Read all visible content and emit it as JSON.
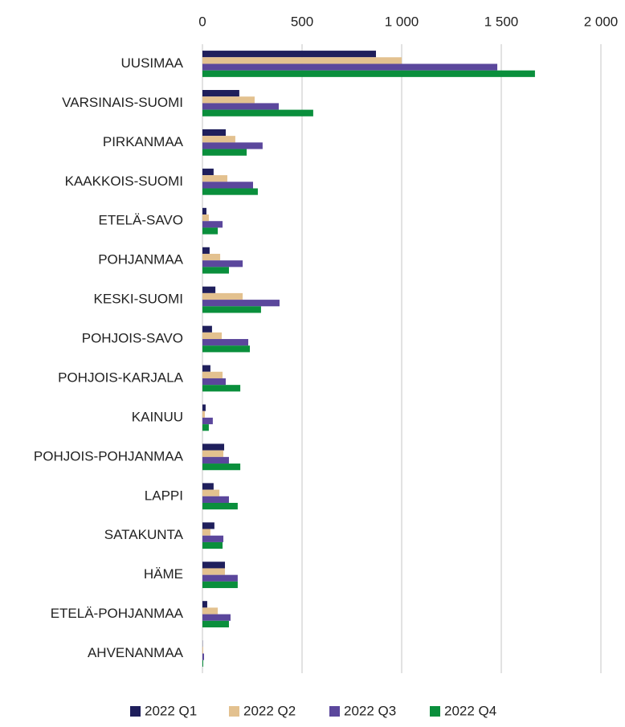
{
  "chart_data": {
    "type": "hbar",
    "categories": [
      "UUSIMAA",
      "VARSINAIS-SUOMI",
      "PIRKANMAA",
      "KAAKKOIS-SUOMI",
      "ETELÄ-SAVO",
      "POHJANMAA",
      "KESKI-SUOMI",
      "POHJOIS-SAVO",
      "POHJOIS-KARJALA",
      "KAINUU",
      "POHJOIS-POHJANMAA",
      "LAPPI",
      "SATAKUNTA",
      "HÄME",
      "ETELÄ-POHJANMAA",
      "AHVENANMAA"
    ],
    "series": [
      {
        "name": "2022 Q1",
        "color": "#1f1f5c",
        "values": [
          871,
          185,
          117,
          56,
          20,
          36,
          65,
          48,
          40,
          16,
          109,
          56,
          60,
          113,
          24,
          1
        ]
      },
      {
        "name": "2022 Q2",
        "color": "#e3c18f",
        "values": [
          1000,
          262,
          165,
          125,
          32,
          89,
          202,
          97,
          101,
          12,
          105,
          85,
          40,
          113,
          77,
          4
        ]
      },
      {
        "name": "2022 Q3",
        "color": "#5b479c",
        "values": [
          1480,
          383,
          302,
          254,
          101,
          202,
          387,
          230,
          117,
          52,
          133,
          133,
          105,
          177,
          141,
          8
        ]
      },
      {
        "name": "2022 Q4",
        "color": "#0a8f3c",
        "values": [
          1669,
          556,
          222,
          278,
          77,
          133,
          294,
          238,
          190,
          32,
          190,
          177,
          101,
          177,
          133,
          4
        ]
      }
    ],
    "xlim": [
      0,
      2000
    ],
    "xticks": [
      0,
      500,
      {
        "value": 1000,
        "label": "1 000"
      },
      {
        "value": 1500,
        "label": "1 500"
      },
      {
        "value": 2000,
        "label": "2 000"
      }
    ],
    "grid": true,
    "legend": "bottom"
  }
}
